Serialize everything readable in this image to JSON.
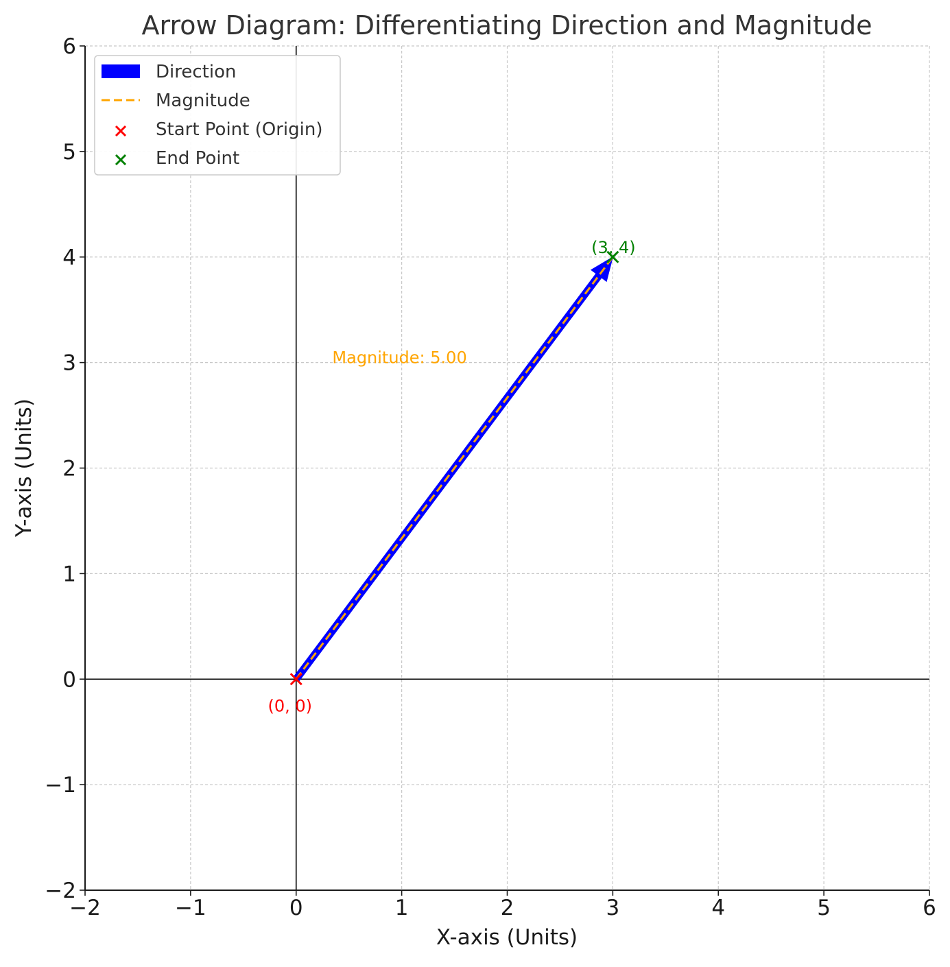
{
  "chart_data": {
    "type": "scatter",
    "title": "Arrow Diagram: Differentiating Direction and Magnitude",
    "xlabel": "X-axis (Units)",
    "ylabel": "Y-axis (Units)",
    "xlim": [
      -2,
      6
    ],
    "ylim": [
      -2,
      6
    ],
    "xticks": [
      -2,
      -1,
      0,
      1,
      2,
      3,
      4,
      5,
      6
    ],
    "yticks": [
      -2,
      -1,
      0,
      1,
      2,
      3,
      4,
      5,
      6
    ],
    "xtick_labels": [
      "−2",
      "−1",
      "0",
      "1",
      "2",
      "3",
      "4",
      "5",
      "6"
    ],
    "ytick_labels": [
      "−2",
      "−1",
      "0",
      "1",
      "2",
      "3",
      "4",
      "5",
      "6"
    ],
    "grid": true,
    "legend_placement": "top-left",
    "arrow": {
      "name": "Direction",
      "from": [
        0,
        0
      ],
      "to": [
        3,
        4
      ],
      "color": "#0000ff"
    },
    "line": {
      "name": "Magnitude",
      "x": [
        0,
        3
      ],
      "y": [
        0,
        4
      ],
      "color": "#ffa500",
      "style": "dashed"
    },
    "points": [
      {
        "name": "Start Point (Origin)",
        "x": 0,
        "y": 0,
        "marker": "x",
        "color": "#ff0000"
      },
      {
        "name": "End Point",
        "x": 3,
        "y": 4,
        "marker": "x",
        "color": "#008000"
      }
    ],
    "legend": [
      "Direction",
      "Magnitude",
      "Start Point (Origin)",
      "End Point"
    ],
    "annotations": [
      {
        "text": "(0, 0)",
        "x": 0,
        "y": 0,
        "color": "#ff0000"
      },
      {
        "text": "(3, 4)",
        "x": 3,
        "y": 4,
        "color": "#008000"
      },
      {
        "text": "Magnitude: 5.00",
        "x": 1.5,
        "y": 1.5,
        "color": "#ffa500"
      }
    ]
  }
}
